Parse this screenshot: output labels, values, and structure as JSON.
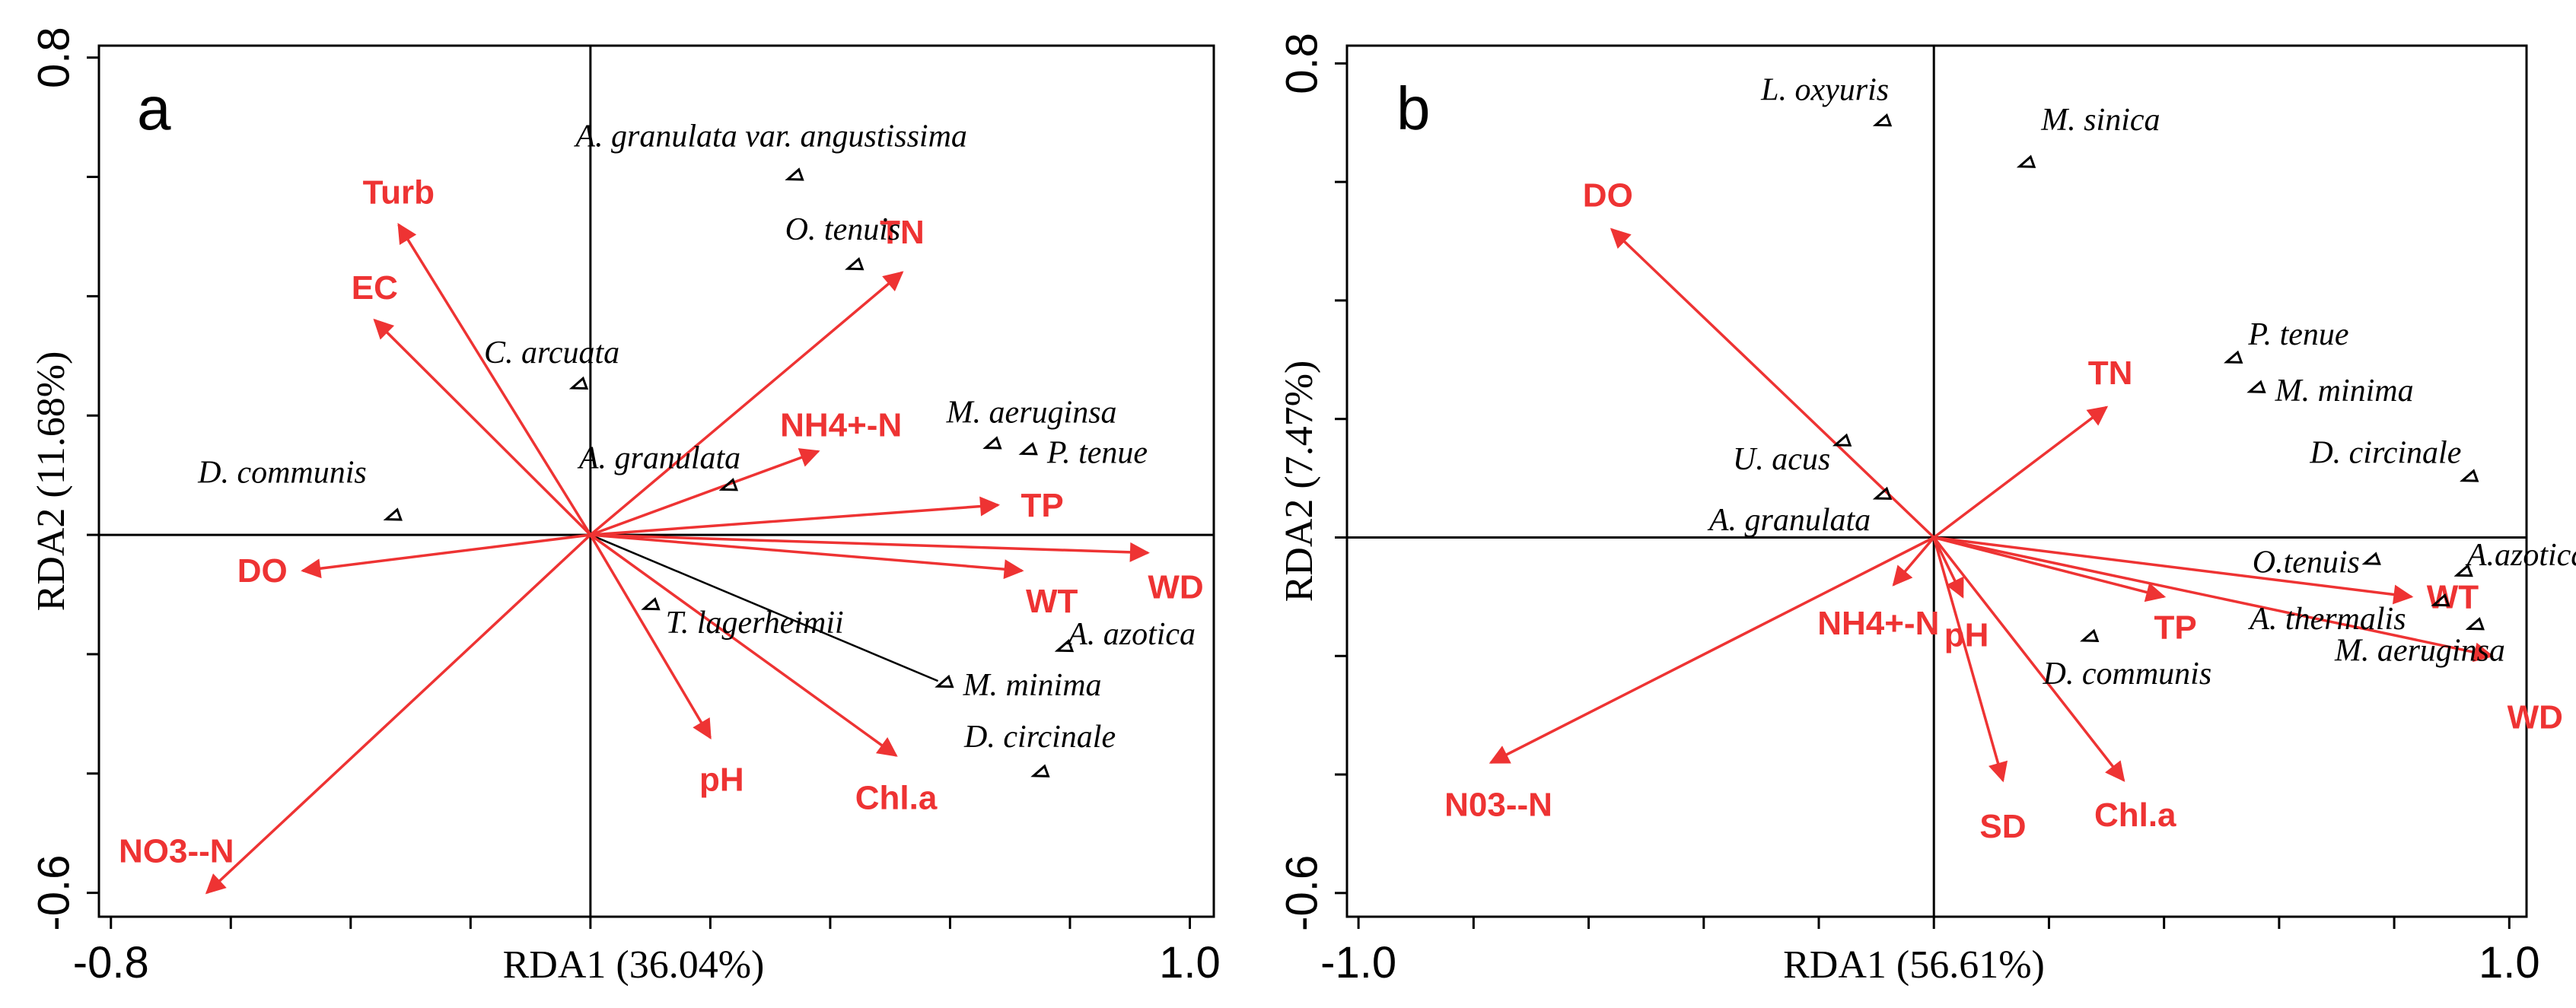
{
  "chart_data": [
    {
      "type": "scatter",
      "panel": "a",
      "xlabel": "RDA1 (36.04%)",
      "ylabel": "RDA2 (11.68%)",
      "xlim": [
        -0.82,
        1.04
      ],
      "ylim": [
        -0.64,
        0.82
      ],
      "x_ticks": [
        -0.8,
        -0.6,
        -0.4,
        -0.2,
        0.0,
        0.2,
        0.4,
        0.6,
        0.8,
        1.0
      ],
      "x_tick_labels": [
        "-0.8",
        "1.0"
      ],
      "x_tick_label_values": [
        -0.8,
        1.0
      ],
      "y_ticks": [
        -0.6,
        -0.4,
        -0.2,
        0.0,
        0.2,
        0.4,
        0.6,
        0.8
      ],
      "y_tick_labels": [
        "-0.6",
        "0.8"
      ],
      "y_tick_label_values": [
        -0.6,
        0.8
      ],
      "env_vectors": [
        {
          "label": "Turb",
          "x": -0.32,
          "y": 0.52
        },
        {
          "label": "EC",
          "x": -0.36,
          "y": 0.36
        },
        {
          "label": "TN",
          "x": 0.52,
          "y": 0.44
        },
        {
          "label": "NH4+-N",
          "x": 0.38,
          "y": 0.14
        },
        {
          "label": "TP",
          "x": 0.68,
          "y": 0.05
        },
        {
          "label": "WD",
          "x": 0.93,
          "y": -0.03
        },
        {
          "label": "WT",
          "x": 0.72,
          "y": -0.06
        },
        {
          "label": "DO",
          "x": -0.48,
          "y": -0.06
        },
        {
          "label": "pH",
          "x": 0.2,
          "y": -0.34
        },
        {
          "label": "Chl.a",
          "x": 0.51,
          "y": -0.37
        },
        {
          "label": "NO3--N",
          "x": -0.64,
          "y": -0.6
        }
      ],
      "species": [
        {
          "label": "A. granulata var. angustissima",
          "x": 0.34,
          "y": 0.6
        },
        {
          "label": "O. tenuis",
          "x": 0.44,
          "y": 0.45
        },
        {
          "label": "C. arcuata",
          "x": -0.02,
          "y": 0.25
        },
        {
          "label": "M. aeruginsa",
          "x": 0.67,
          "y": 0.15
        },
        {
          "label": "P. tenue",
          "x": 0.73,
          "y": 0.14
        },
        {
          "label": "A. granulata",
          "x": 0.23,
          "y": 0.08
        },
        {
          "label": "D. communis",
          "x": -0.33,
          "y": 0.03
        },
        {
          "label": "T. lagerheimii",
          "x": 0.1,
          "y": -0.12
        },
        {
          "label": "A. azotica",
          "x": 0.79,
          "y": -0.19
        },
        {
          "label": "M. minima",
          "x": 0.59,
          "y": -0.25
        },
        {
          "label": "D. circinale",
          "x": 0.75,
          "y": -0.4
        }
      ]
    },
    {
      "type": "scatter",
      "panel": "b",
      "xlabel": "RDA1 (56.61%)",
      "ylabel": "RDA2 (7.47%)",
      "xlim": [
        -1.02,
        1.03
      ],
      "ylim": [
        -0.64,
        0.83
      ],
      "x_ticks": [
        -1.0,
        -0.8,
        -0.6,
        -0.4,
        -0.2,
        0.0,
        0.2,
        0.4,
        0.6,
        0.8,
        1.0
      ],
      "x_tick_labels": [
        "-1.0",
        "1.0"
      ],
      "x_tick_label_values": [
        -1.0,
        1.0
      ],
      "y_ticks": [
        -0.6,
        -0.4,
        -0.2,
        0.0,
        0.2,
        0.4,
        0.6,
        0.8
      ],
      "y_tick_labels": [
        "-0.6",
        "0.8"
      ],
      "y_tick_label_values": [
        -0.6,
        0.8
      ],
      "env_vectors": [
        {
          "label": "DO",
          "x": -0.56,
          "y": 0.52
        },
        {
          "label": "TN",
          "x": 0.3,
          "y": 0.22
        },
        {
          "label": "WT",
          "x": 0.83,
          "y": -0.1
        },
        {
          "label": "WD",
          "x": 0.97,
          "y": -0.2
        },
        {
          "label": "TP",
          "x": 0.4,
          "y": -0.1
        },
        {
          "label": "NH4+-N",
          "x": -0.07,
          "y": -0.08
        },
        {
          "label": "pH",
          "x": 0.05,
          "y": -0.1
        },
        {
          "label": "SD",
          "x": 0.12,
          "y": -0.41
        },
        {
          "label": "Chl.a",
          "x": 0.33,
          "y": -0.41
        },
        {
          "label": "N03--N",
          "x": -0.77,
          "y": -0.38
        }
      ],
      "species": [
        {
          "label": "L. oxyuris",
          "x": -0.09,
          "y": 0.7
        },
        {
          "label": "M. sinica",
          "x": 0.16,
          "y": 0.63
        },
        {
          "label": "P. tenue",
          "x": 0.52,
          "y": 0.3
        },
        {
          "label": "M. minima",
          "x": 0.56,
          "y": 0.25
        },
        {
          "label": "D. circinale",
          "x": 0.93,
          "y": 0.1
        },
        {
          "label": "U. acus",
          "x": -0.16,
          "y": 0.16
        },
        {
          "label": "A. granulata",
          "x": -0.09,
          "y": 0.07
        },
        {
          "label": "O.tenuis",
          "x": 0.76,
          "y": -0.04
        },
        {
          "label": "A.azotica",
          "x": 0.92,
          "y": -0.06
        },
        {
          "label": "A. thermalis",
          "x": 0.88,
          "y": -0.11
        },
        {
          "label": "M. aeruginsa",
          "x": 0.94,
          "y": -0.15
        },
        {
          "label": "D. communis",
          "x": 0.27,
          "y": -0.17
        }
      ]
    }
  ]
}
